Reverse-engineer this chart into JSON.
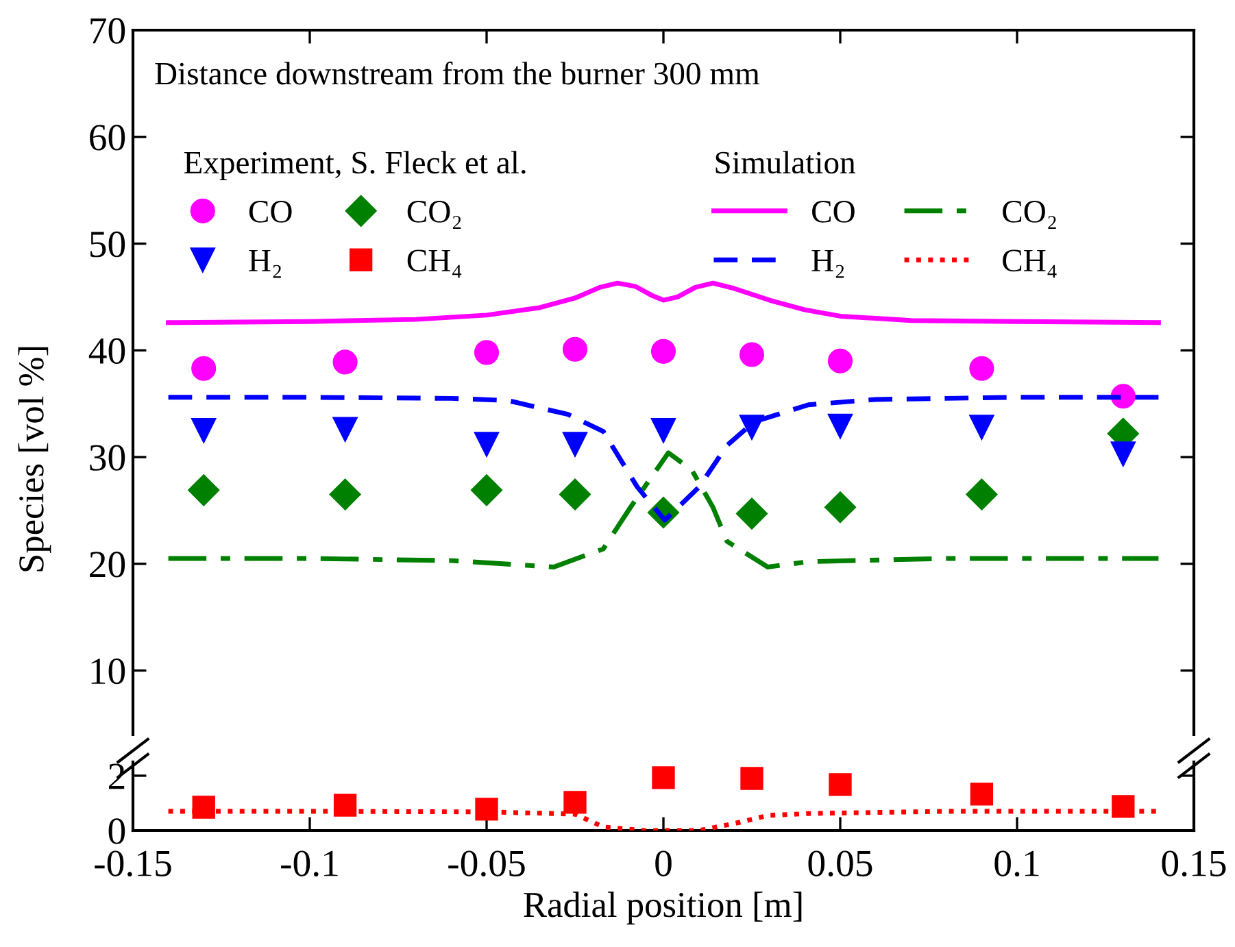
{
  "chart_data": [
    {
      "type": "line",
      "ylabel": "Species [vol %]",
      "annotations": [
        "Distance downstream from the burner 300 mm",
        "Experiment, S. Fleck et al.",
        "Simulation"
      ],
      "xlim": [
        -0.15,
        0.15
      ],
      "xticks": [
        -0.15,
        -0.1,
        -0.05,
        0,
        0.05,
        0.1,
        0.15
      ],
      "ylim": [
        4,
        70
      ],
      "yticks": [
        10,
        20,
        30,
        40,
        50,
        60,
        70
      ],
      "tick_labels": "y",
      "legend": "top",
      "grid": false,
      "series": [
        {
          "name": "CO",
          "type": "scatter",
          "marker": "circle",
          "color": "#ff00ff",
          "x": [
            -0.13,
            -0.09,
            -0.05,
            -0.025,
            0,
            0.025,
            0.05,
            0.09,
            0.13
          ],
          "values": [
            38.3,
            38.9,
            39.8,
            40.1,
            39.9,
            39.6,
            39.0,
            38.3,
            35.7
          ]
        },
        {
          "name": "CO₂",
          "type": "scatter",
          "marker": "diamond",
          "color": "#008000",
          "x": [
            -0.13,
            -0.09,
            -0.05,
            -0.025,
            0,
            0.025,
            0.05,
            0.09,
            0.13
          ],
          "values": [
            26.9,
            26.5,
            26.9,
            26.5,
            24.8,
            24.7,
            25.3,
            26.5,
            32.2
          ]
        },
        {
          "name": "H₂",
          "type": "scatter",
          "marker": "triangle",
          "color": "#0000ff",
          "x": [
            -0.13,
            -0.09,
            -0.05,
            -0.025,
            0,
            0.025,
            0.05,
            0.09,
            0.13
          ],
          "values": [
            32.5,
            32.6,
            31.2,
            31.2,
            32.5,
            32.8,
            32.9,
            32.8,
            30.3
          ]
        },
        {
          "name": "CO",
          "line_style": "solid",
          "color": "#ff00ff",
          "x": [
            -0.14,
            -0.1,
            -0.07,
            -0.05,
            -0.035,
            -0.025,
            -0.018,
            -0.013,
            -0.008,
            -0.003,
            0,
            0.004,
            0.009,
            0.014,
            0.02,
            0.03,
            0.04,
            0.05,
            0.07,
            0.1,
            0.14
          ],
          "values": [
            42.6,
            42.7,
            42.9,
            43.3,
            44.0,
            44.9,
            45.9,
            46.3,
            46.0,
            45.1,
            44.7,
            45.0,
            45.9,
            46.3,
            45.8,
            44.7,
            43.8,
            43.2,
            42.8,
            42.7,
            42.6
          ]
        },
        {
          "name": "CO₂",
          "line_style": "dashdot",
          "color": "#008000",
          "x": [
            -0.14,
            -0.1,
            -0.06,
            -0.031,
            -0.017,
            -0.0093,
            0.0014,
            0.008,
            0.014,
            0.018,
            0.0295,
            0.041,
            0.08,
            0.14
          ],
          "values": [
            20.5,
            20.5,
            20.3,
            19.7,
            21.4,
            25.3,
            30.4,
            28.8,
            25.3,
            22.1,
            19.7,
            20.2,
            20.5,
            20.5
          ]
        },
        {
          "name": "H₂",
          "line_style": "dashed",
          "color": "#0000ff",
          "x": [
            -0.14,
            -0.1,
            -0.06,
            -0.044,
            -0.027,
            -0.017,
            -0.0074,
            0.0004,
            0.0101,
            0.018,
            0.0256,
            0.041,
            0.06,
            0.1,
            0.14
          ],
          "values": [
            35.6,
            35.6,
            35.5,
            35.3,
            34.0,
            32.4,
            27.2,
            24.1,
            27.2,
            31.1,
            33.3,
            34.9,
            35.4,
            35.6,
            35.6
          ]
        }
      ]
    },
    {
      "type": "line",
      "xlabel": "Radial position [m]",
      "xlim": [
        -0.15,
        0.15
      ],
      "xticks": [
        -0.15,
        -0.1,
        -0.05,
        0,
        0.05,
        0.1,
        0.15
      ],
      "ylim": [
        0,
        2.5
      ],
      "yticks": [
        0,
        2
      ],
      "legend": "top",
      "grid": false,
      "series": [
        {
          "name": "CH₄",
          "type": "scatter",
          "marker": "square",
          "color": "#ff0000",
          "x": [
            -0.13,
            -0.09,
            -0.05,
            -0.025,
            0,
            0.025,
            0.05,
            0.09,
            0.13
          ],
          "values": [
            0.85,
            0.92,
            0.78,
            1.03,
            1.93,
            1.9,
            1.68,
            1.33,
            0.88
          ]
        },
        {
          "name": "CH₄",
          "line_style": "dotted",
          "color": "#ff0000",
          "x": [
            -0.14,
            -0.1,
            -0.05,
            -0.025,
            -0.017,
            -0.0054,
            0.01,
            0.0217,
            0.0295,
            0.041,
            0.08,
            0.14
          ],
          "values": [
            0.7,
            0.7,
            0.68,
            0.6,
            0.13,
            0.0,
            0.0,
            0.3,
            0.55,
            0.62,
            0.7,
            0.7
          ]
        }
      ]
    }
  ]
}
